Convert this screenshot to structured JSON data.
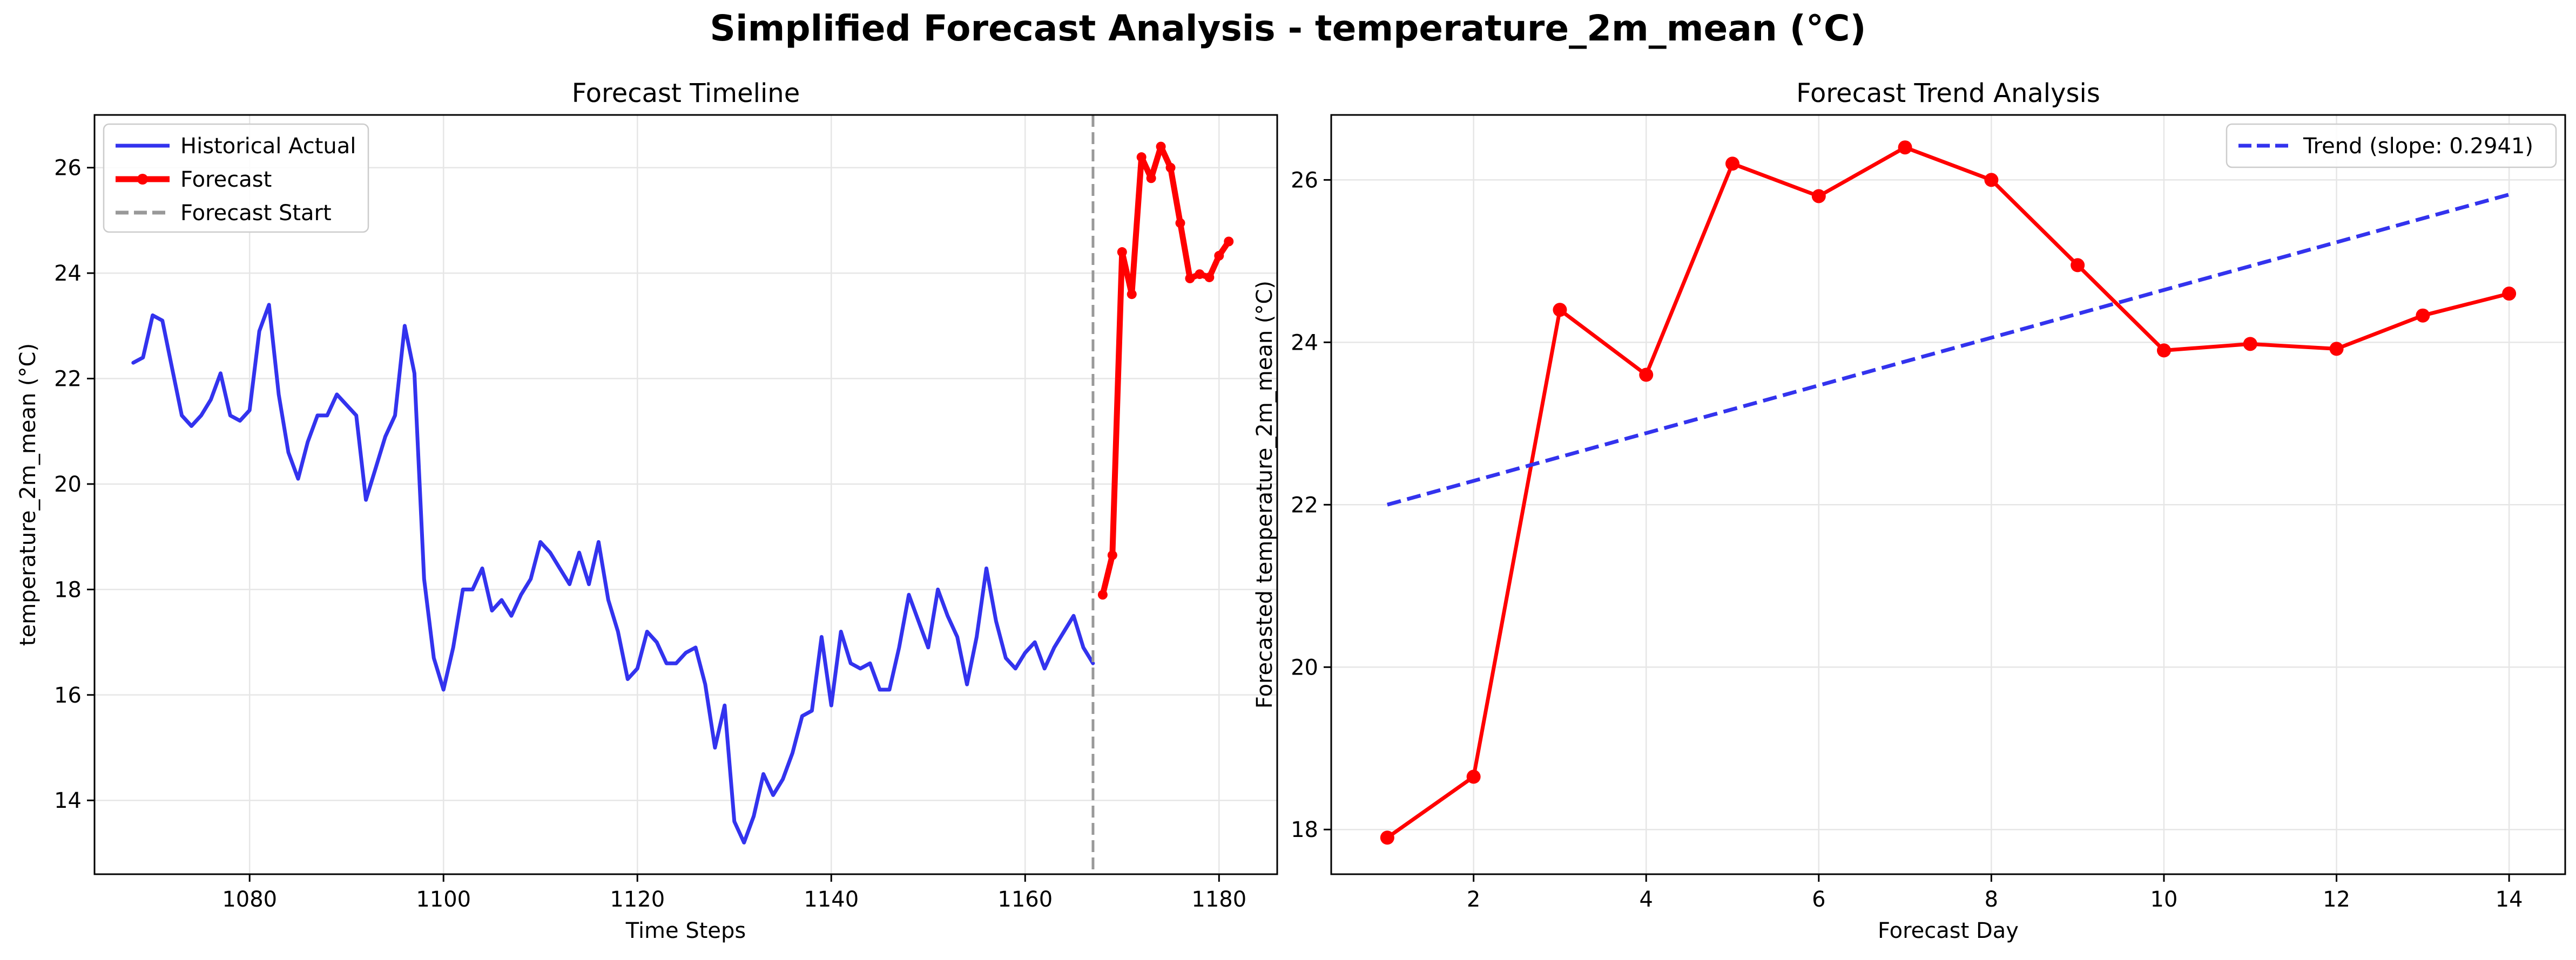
{
  "figure": {
    "title": "Simplified Forecast Analysis - temperature_2m_mean (°C)"
  },
  "chart_data": [
    {
      "type": "line",
      "title": "Forecast Timeline",
      "xlabel": "Time Steps",
      "ylabel": "temperature_2m_mean (°C)",
      "xlim": [
        1064,
        1186
      ],
      "ylim": [
        12.6,
        27.0
      ],
      "xticks": [
        1080,
        1100,
        1120,
        1140,
        1160,
        1180
      ],
      "yticks": [
        14,
        16,
        18,
        20,
        22,
        24,
        26
      ],
      "grid": true,
      "legend_position": "upper-left",
      "series": [
        {
          "name": "Historical Actual",
          "color": "#3333ee",
          "style": "solid",
          "x": [
            1068,
            1069,
            1070,
            1071,
            1072,
            1073,
            1074,
            1075,
            1076,
            1077,
            1078,
            1079,
            1080,
            1081,
            1082,
            1083,
            1084,
            1085,
            1086,
            1087,
            1088,
            1089,
            1090,
            1091,
            1092,
            1093,
            1094,
            1095,
            1096,
            1097,
            1098,
            1099,
            1100,
            1101,
            1102,
            1103,
            1104,
            1105,
            1106,
            1107,
            1108,
            1109,
            1110,
            1111,
            1112,
            1113,
            1114,
            1115,
            1116,
            1117,
            1118,
            1119,
            1120,
            1121,
            1122,
            1123,
            1124,
            1125,
            1126,
            1127,
            1128,
            1129,
            1130,
            1131,
            1132,
            1133,
            1134,
            1135,
            1136,
            1137,
            1138,
            1139,
            1140,
            1141,
            1142,
            1143,
            1144,
            1145,
            1146,
            1147,
            1148,
            1149,
            1150,
            1151,
            1152,
            1153,
            1154,
            1155,
            1156,
            1157,
            1158,
            1159,
            1160,
            1161,
            1162,
            1163,
            1164,
            1165,
            1166,
            1167
          ],
          "y": [
            22.3,
            22.4,
            23.2,
            23.1,
            22.2,
            21.3,
            21.1,
            21.3,
            21.6,
            22.1,
            21.3,
            21.2,
            21.4,
            22.9,
            23.4,
            21.7,
            20.6,
            20.1,
            20.8,
            21.3,
            21.3,
            21.7,
            21.5,
            21.3,
            19.7,
            20.3,
            20.9,
            21.3,
            23.0,
            22.1,
            18.2,
            16.7,
            16.1,
            16.9,
            18.0,
            18.0,
            18.4,
            17.6,
            17.8,
            17.5,
            17.9,
            18.2,
            18.9,
            18.7,
            18.4,
            18.1,
            18.7,
            18.1,
            18.9,
            17.8,
            17.2,
            16.3,
            16.5,
            17.2,
            17.0,
            16.6,
            16.6,
            16.8,
            16.9,
            16.2,
            15.0,
            15.8,
            13.6,
            13.2,
            13.7,
            14.5,
            14.1,
            14.4,
            14.9,
            15.6,
            15.7,
            17.1,
            15.8,
            17.2,
            16.6,
            16.5,
            16.6,
            16.1,
            16.1,
            16.9,
            17.9,
            17.4,
            16.9,
            18.0,
            17.5,
            17.1,
            16.2,
            17.1,
            18.4,
            17.4,
            16.7,
            16.5,
            16.8,
            17.0,
            16.5,
            16.9,
            17.2,
            17.5,
            16.9,
            16.6
          ]
        },
        {
          "name": "Forecast",
          "color": "#ff0000",
          "style": "solid-markers",
          "x": [
            1168,
            1169,
            1170,
            1171,
            1172,
            1173,
            1174,
            1175,
            1176,
            1177,
            1178,
            1179,
            1180,
            1181
          ],
          "y": [
            17.9,
            18.65,
            24.4,
            23.6,
            26.2,
            25.8,
            26.4,
            26.0,
            24.95,
            23.9,
            23.98,
            23.92,
            24.33,
            24.6
          ]
        },
        {
          "name": "Forecast Start",
          "color": "#999999",
          "style": "dashed-vertical",
          "x": [
            1167
          ]
        }
      ]
    },
    {
      "type": "line",
      "title": "Forecast Trend Analysis",
      "xlabel": "Forecast Day",
      "ylabel": "Forecasted temperature_2m_mean (°C)",
      "xlim": [
        0.35,
        14.65
      ],
      "ylim": [
        17.45,
        26.8
      ],
      "xticks": [
        2,
        4,
        6,
        8,
        10,
        12,
        14
      ],
      "yticks": [
        18,
        20,
        22,
        24,
        26
      ],
      "grid": true,
      "legend_position": "upper-right",
      "series": [
        {
          "color": "#ff0000",
          "style": "solid-markers",
          "x": [
            1,
            2,
            3,
            4,
            5,
            6,
            7,
            8,
            9,
            10,
            11,
            12,
            13,
            14
          ],
          "y": [
            17.9,
            18.65,
            24.4,
            23.6,
            26.2,
            25.8,
            26.4,
            26.0,
            24.95,
            23.9,
            23.98,
            23.92,
            24.33,
            24.6
          ]
        },
        {
          "name": "Trend (slope: 0.2941)",
          "color": "#3333ee",
          "style": "dashed",
          "x": [
            1,
            14
          ],
          "y": [
            22.0,
            25.82
          ]
        }
      ]
    }
  ]
}
